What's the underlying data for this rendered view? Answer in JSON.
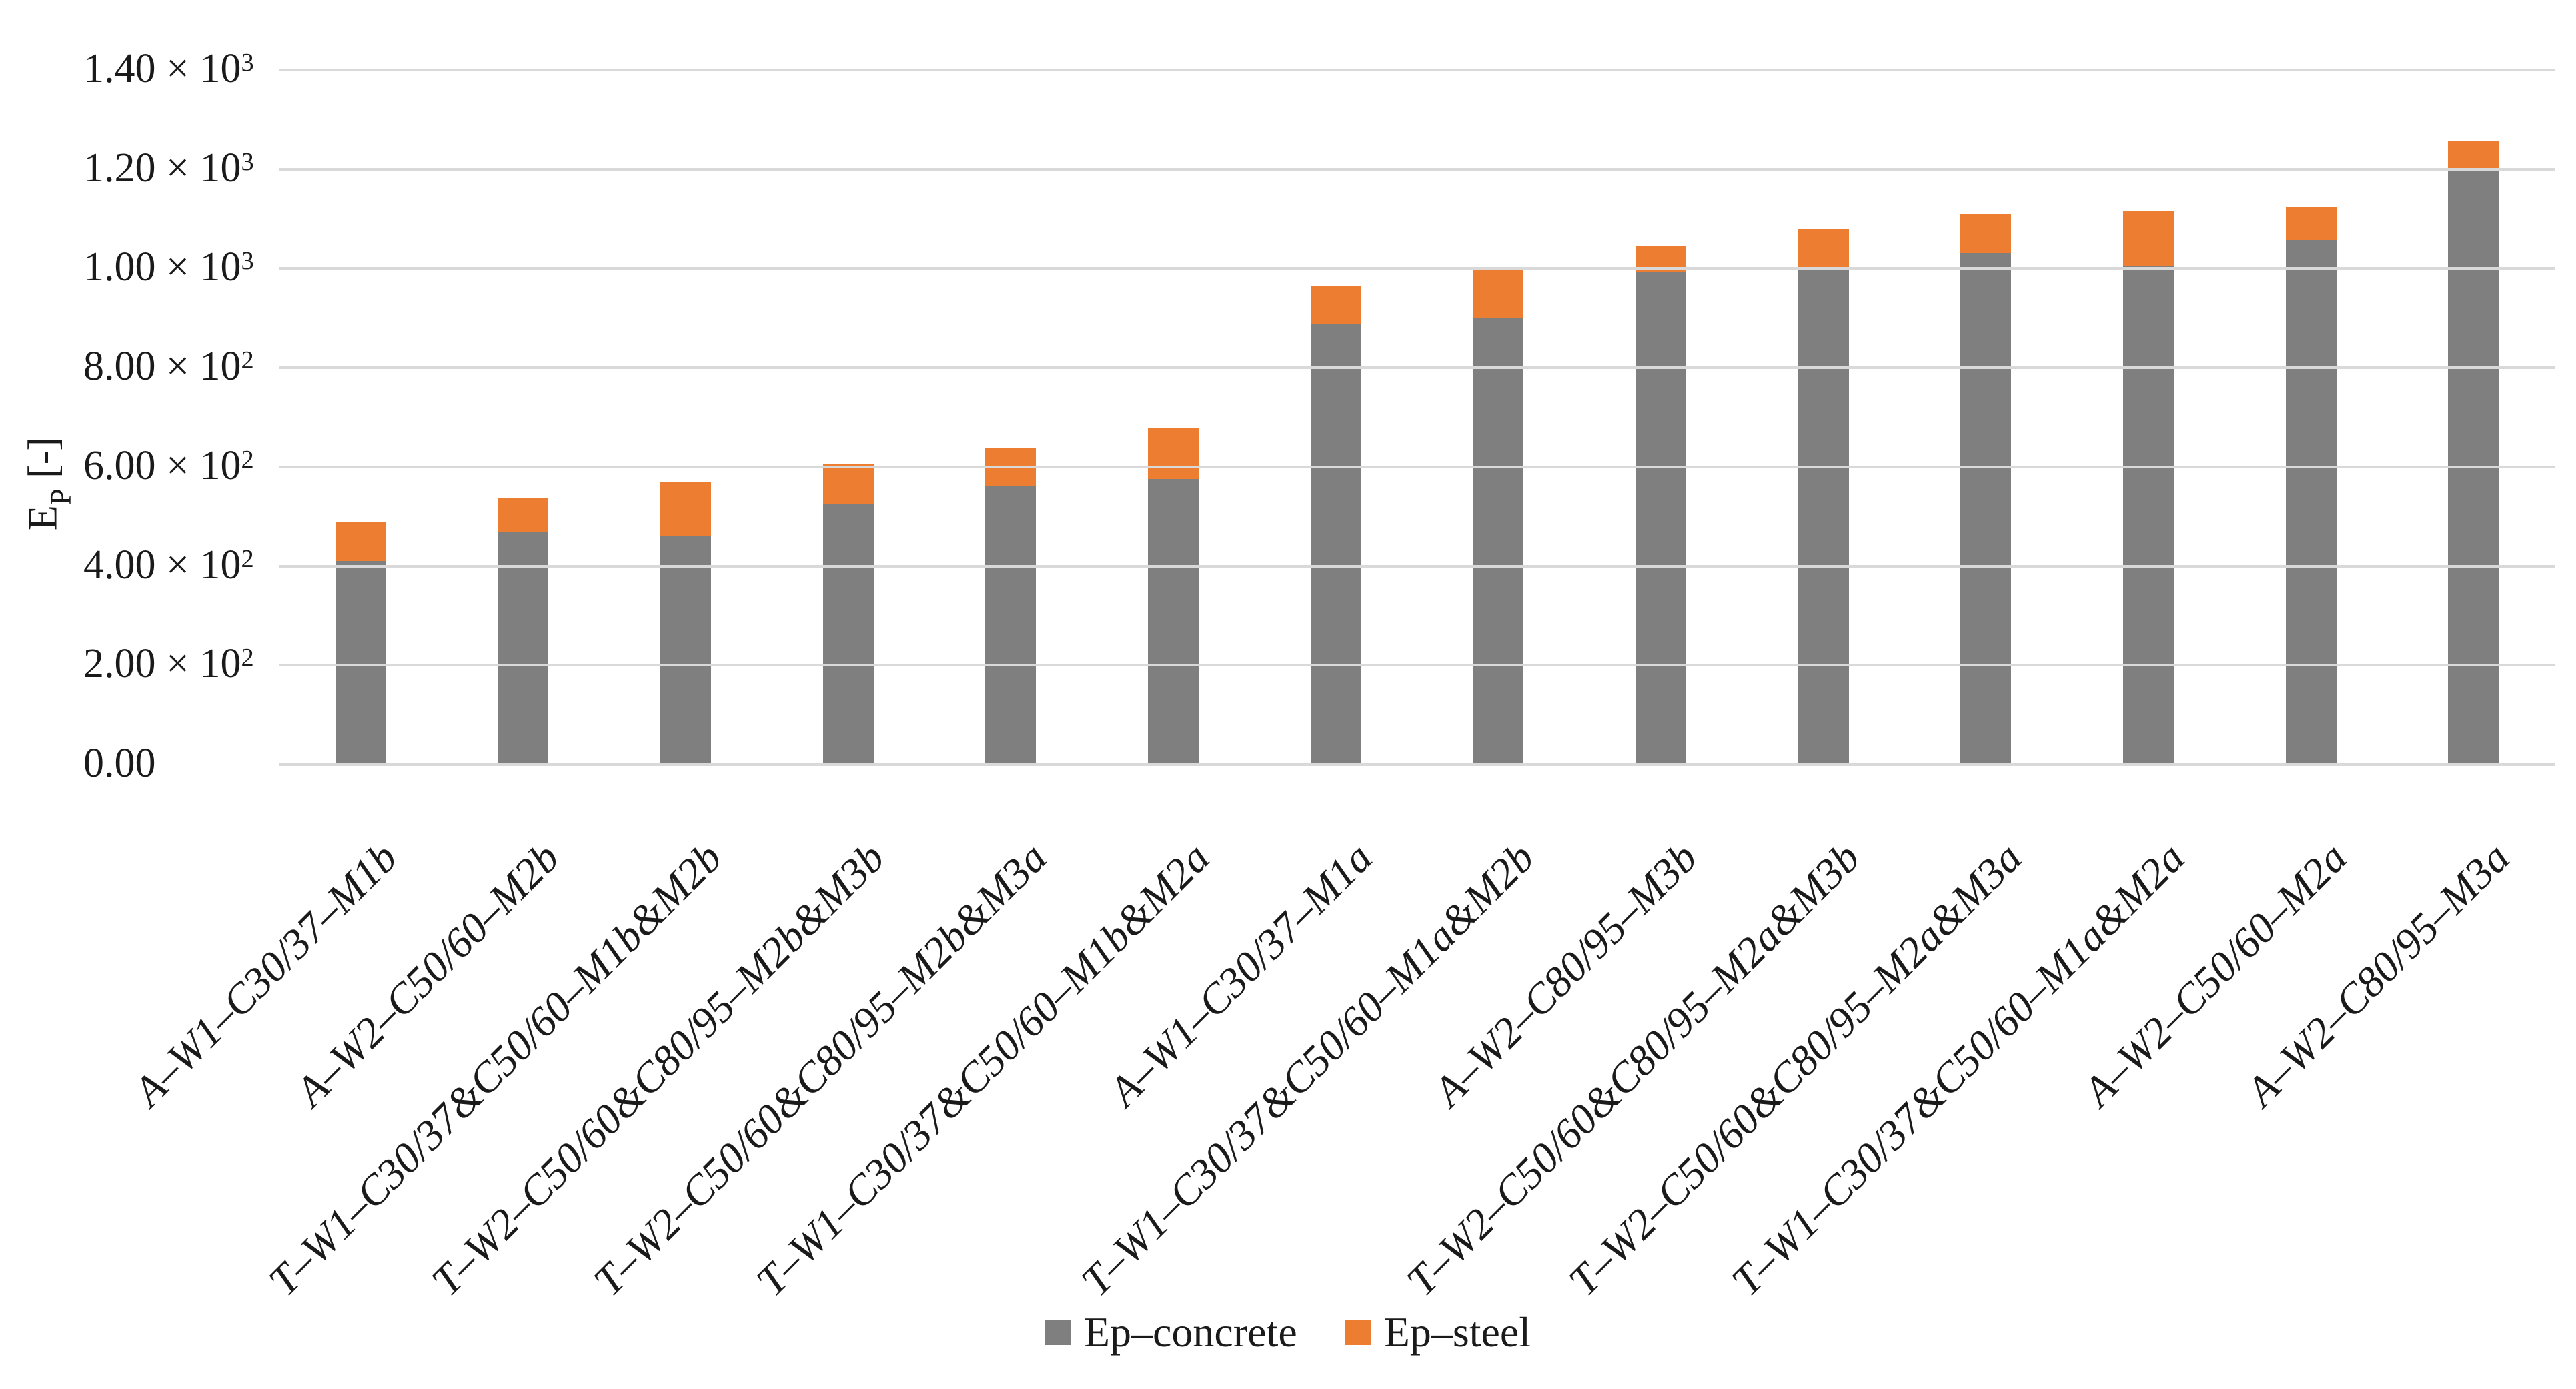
{
  "figure": {
    "background": "#ffffff",
    "text_color": "#1a1a1a"
  },
  "chart_data": {
    "type": "bar",
    "stacked": true,
    "title": "",
    "xlabel": "",
    "ylabel": {
      "base": "E",
      "sub": "P",
      "suffix": " [-]"
    },
    "ylim": [
      0,
      1400
    ],
    "grid": true,
    "gridline_color": "#d9d9d9",
    "legend_position": "bottom",
    "bar_color_concrete": "#7f7f7f",
    "bar_color_steel": "#ed7d31",
    "yticks": [
      {
        "value": 1400,
        "m": "1.40 × 10",
        "e": "3"
      },
      {
        "value": 1200,
        "m": "1.20 × 10",
        "e": "3"
      },
      {
        "value": 1000,
        "m": "1.00 × 10",
        "e": "3"
      },
      {
        "value": 800,
        "m": "8.00 × 10",
        "e": "2"
      },
      {
        "value": 600,
        "m": "6.00 × 10",
        "e": "2"
      },
      {
        "value": 400,
        "m": "4.00 × 10",
        "e": "2"
      },
      {
        "value": 200,
        "m": "2.00 × 10",
        "e": "2"
      },
      {
        "value": 0,
        "m": "0.00",
        "e": ""
      }
    ],
    "categories": [
      "A–W1–C30/37–M1b",
      "A–W2–C50/60–M2b",
      "T–W1–C30/37&C50/60–M1b&M2b",
      "T–W2–C50/60&C80/95–M2b&M3b",
      "T–W2–C50/60&C80/95–M2b&M3a",
      "T–W1–C30/37&C50/60–M1b&M2a",
      "A–W1–C30/37–M1a",
      "T–W1–C30/37&C50/60–M1a&M2b",
      "A–W2–C80/95–M3b",
      "T–W2–C50/60&C80/95–M2a&M3b",
      "T–W2–C50/60&C80/95–M2a&M3a",
      "T–W1–C30/37&C50/60–M1a&M2a",
      "A–W2–C50/60–M2a",
      "A–W2–C80/95–M3a"
    ],
    "series": [
      {
        "name": "Ep–concrete",
        "color": "#7f7f7f",
        "values": [
          410,
          468,
          460,
          525,
          562,
          575,
          888,
          900,
          993,
          996,
          1031,
          1006,
          1058,
          1201
        ]
      },
      {
        "name": "Ep–steel",
        "color": "#ed7d31",
        "values": [
          78,
          70,
          110,
          82,
          75,
          103,
          77,
          103,
          53,
          82,
          78,
          109,
          65,
          57
        ]
      }
    ]
  }
}
